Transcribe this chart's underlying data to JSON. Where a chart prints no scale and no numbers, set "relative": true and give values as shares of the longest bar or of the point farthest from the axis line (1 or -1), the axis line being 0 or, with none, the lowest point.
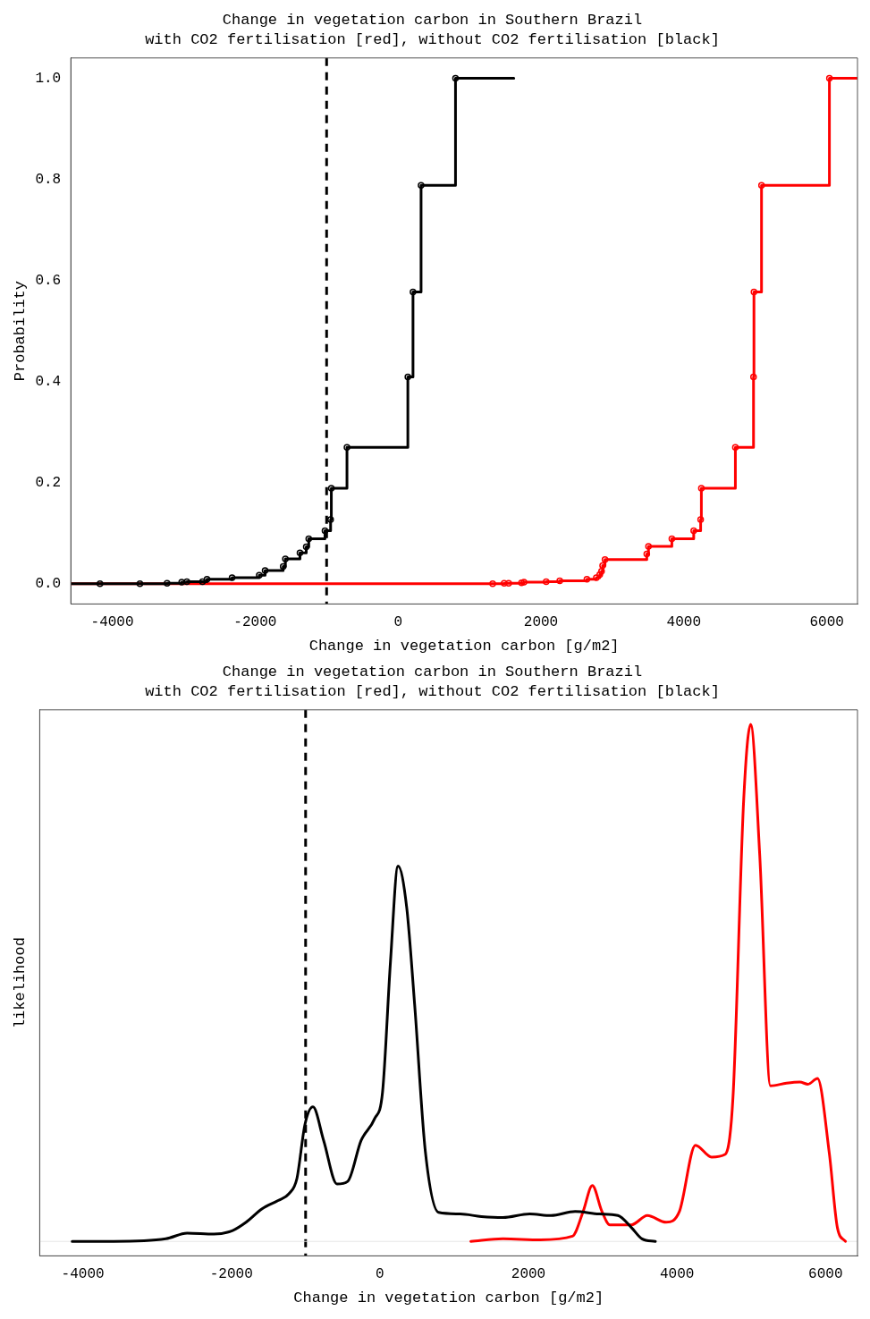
{
  "chart_data": [
    {
      "type": "step",
      "title": "Change in vegetation carbon in Southern Brazil",
      "subtitle": "with CO2 fertilisation [red], without CO2 fertilisation [black]",
      "xlabel": "Change in vegetation carbon [g/m2]",
      "ylabel": "Probability",
      "series": [
        {
          "color": "#000000",
          "x": [
            -4580,
            -4172,
            -3613,
            -3233,
            -3028,
            -2956,
            -2737,
            -2674,
            -2323,
            -1943,
            -1861,
            -1608,
            -1577,
            -1373,
            -1285,
            -1250,
            -1023,
            -944,
            -934,
            -715,
            137,
            209,
            322,
            804,
            1620
          ],
          "values": [
            0,
            0,
            0,
            0.001,
            0.003,
            0.004,
            0.004,
            0.009,
            0.012,
            0.017,
            0.026,
            0.034,
            0.049,
            0.061,
            0.073,
            0.089,
            0.105,
            0.127,
            0.189,
            0.27,
            0.409,
            0.577,
            0.788,
            1,
            1
          ]
        },
        {
          "color": "#ff0000",
          "x": [
            -4580,
            1324,
            1485,
            1548,
            1728,
            1762,
            2073,
            2263,
            2643,
            2775,
            2823,
            2848,
            2863,
            2896,
            3481,
            3505,
            3832,
            4138,
            4235,
            4245,
            4721,
            4975,
            4981,
            5087,
            6037,
            6430
          ],
          "values": [
            0,
            0,
            0.001,
            0.001,
            0.002,
            0.003,
            0.004,
            0.006,
            0.009,
            0.012,
            0.018,
            0.025,
            0.036,
            0.048,
            0.059,
            0.074,
            0.089,
            0.105,
            0.127,
            0.189,
            0.27,
            0.409,
            0.577,
            0.788,
            1,
            1
          ]
        }
      ],
      "xlim": [
        -4580,
        6430
      ],
      "xticks": [
        -4000,
        -2000,
        0,
        2000,
        4000,
        6000
      ],
      "ylim": [
        -0.04,
        1.04
      ],
      "yticks": [
        {
          "value": 0,
          "label": "0.0"
        },
        0.2,
        0.4,
        0.6,
        0.8,
        {
          "value": 1,
          "label": "1.0"
        }
      ],
      "ref_lines": [
        {
          "axis": "x",
          "value": -1000,
          "line_style": "dashed"
        }
      ],
      "marker": "circle",
      "grid": false,
      "legend": false
    },
    {
      "type": "line",
      "title": "Change in vegetation carbon in Southern Brazil",
      "subtitle": "with CO2 fertilisation [red], without CO2 fertilisation [black]",
      "xlabel": "Change in vegetation carbon [g/m2]",
      "ylabel": "likelihood",
      "relative": true,
      "series": [
        {
          "color": "#000000",
          "x": [
            -4143,
            -3585,
            -2882,
            -2595,
            -2234,
            -1982,
            -1801,
            -1586,
            -1370,
            -1225,
            -1118,
            -1009,
            -901,
            -757,
            -577,
            -433,
            -253,
            -72,
            36,
            143,
            244,
            360,
            468,
            612,
            791,
            1080,
            1367,
            1657,
            2016,
            2304,
            2629,
            2953,
            3205,
            3385,
            3529,
            3709
          ],
          "values": [
            0,
            0,
            0.005,
            0.016,
            0.014,
            0.021,
            0.037,
            0.063,
            0.079,
            0.092,
            0.121,
            0.226,
            0.26,
            0.195,
            0.111,
            0.116,
            0.195,
            0.237,
            0.289,
            0.542,
            0.726,
            0.647,
            0.458,
            0.174,
            0.056,
            0.053,
            0.048,
            0.046,
            0.053,
            0.05,
            0.058,
            0.053,
            0.05,
            0.027,
            0.005,
            0
          ]
        },
        {
          "color": "#ff0000",
          "x": [
            1224,
            1657,
            2161,
            2593,
            2737,
            2860,
            2989,
            3097,
            3385,
            3601,
            3854,
            4033,
            4249,
            4466,
            4646,
            4754,
            4899,
            4992,
            5114,
            5258,
            5475,
            5654,
            5763,
            5892,
            6051,
            6160,
            6268
          ],
          "values": [
            0,
            0.005,
            0.003,
            0.01,
            0.058,
            0.108,
            0.058,
            0.032,
            0.032,
            0.05,
            0.037,
            0.058,
            0.186,
            0.163,
            0.168,
            0.279,
            0.857,
            1,
            0.747,
            0.301,
            0.306,
            0.308,
            0.304,
            0.315,
            0.17,
            0.026,
            0
          ]
        }
      ],
      "xlim": [
        -4580,
        6430
      ],
      "xticks": [
        -4000,
        -2000,
        0,
        2000,
        4000,
        6000
      ],
      "ref_lines": [
        {
          "axis": "x",
          "value": -1000,
          "line_style": "dashed"
        },
        {
          "axis": "y",
          "value": 0,
          "color": "#e6e6e6"
        }
      ],
      "tick_labels": "x",
      "grid": false,
      "legend": false
    }
  ]
}
